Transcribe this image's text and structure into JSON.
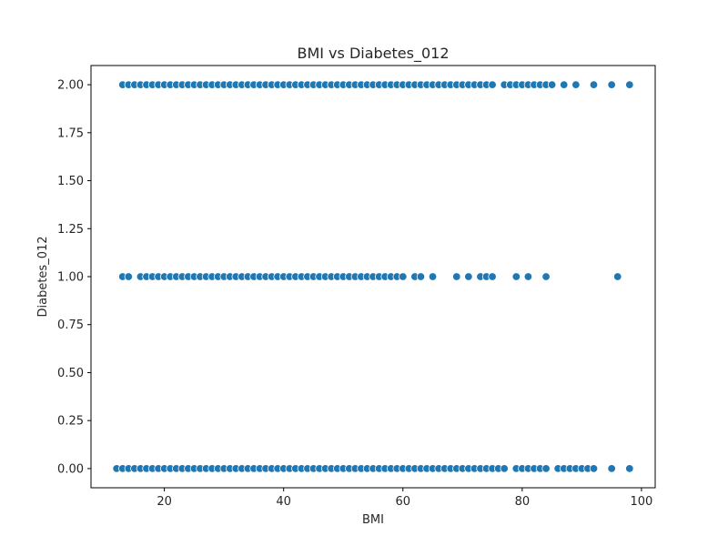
{
  "chart_data": {
    "type": "scatter",
    "title": "BMI vs Diabetes_012",
    "xlabel": "BMI",
    "ylabel": "Diabetes_012",
    "xlim": [
      7.7,
      102.3
    ],
    "ylim": [
      -0.1,
      2.1
    ],
    "xticks": [
      20,
      40,
      60,
      80,
      100
    ],
    "yticks": [
      0.0,
      0.25,
      0.5,
      0.75,
      1.0,
      1.25,
      1.5,
      1.75,
      2.0
    ],
    "ytick_labels": [
      "0.00",
      "0.25",
      "0.50",
      "0.75",
      "1.00",
      "1.25",
      "1.50",
      "1.75",
      "2.00"
    ],
    "grid": false,
    "marker_color": "#1f77b4",
    "series": [
      {
        "y": 2.0,
        "x": [
          13,
          14,
          15,
          16,
          17,
          18,
          19,
          20,
          21,
          22,
          23,
          24,
          25,
          26,
          27,
          28,
          29,
          30,
          31,
          32,
          33,
          34,
          35,
          36,
          37,
          38,
          39,
          40,
          41,
          42,
          43,
          44,
          45,
          46,
          47,
          48,
          49,
          50,
          51,
          52,
          53,
          54,
          55,
          56,
          57,
          58,
          59,
          60,
          61,
          62,
          63,
          64,
          65,
          66,
          67,
          68,
          69,
          70,
          71,
          72,
          73,
          74,
          75,
          77,
          78,
          79,
          80,
          81,
          82,
          83,
          84,
          85,
          87,
          89,
          92,
          95,
          98
        ]
      },
      {
        "y": 1.0,
        "x": [
          13,
          14,
          16,
          17,
          18,
          19,
          20,
          21,
          22,
          23,
          24,
          25,
          26,
          27,
          28,
          29,
          30,
          31,
          32,
          33,
          34,
          35,
          36,
          37,
          38,
          39,
          40,
          41,
          42,
          43,
          44,
          45,
          46,
          47,
          48,
          49,
          50,
          51,
          52,
          53,
          54,
          55,
          56,
          57,
          58,
          59,
          60,
          62,
          63,
          65,
          69,
          71,
          73,
          74,
          75,
          79,
          81,
          84,
          96
        ]
      },
      {
        "y": 0.0,
        "x": [
          12,
          13,
          14,
          15,
          16,
          17,
          18,
          19,
          20,
          21,
          22,
          23,
          24,
          25,
          26,
          27,
          28,
          29,
          30,
          31,
          32,
          33,
          34,
          35,
          36,
          37,
          38,
          39,
          40,
          41,
          42,
          43,
          44,
          45,
          46,
          47,
          48,
          49,
          50,
          51,
          52,
          53,
          54,
          55,
          56,
          57,
          58,
          59,
          60,
          61,
          62,
          63,
          64,
          65,
          66,
          67,
          68,
          69,
          70,
          71,
          72,
          73,
          74,
          75,
          76,
          77,
          79,
          80,
          81,
          82,
          83,
          84,
          86,
          87,
          88,
          89,
          90,
          91,
          92,
          95,
          98
        ]
      }
    ]
  }
}
